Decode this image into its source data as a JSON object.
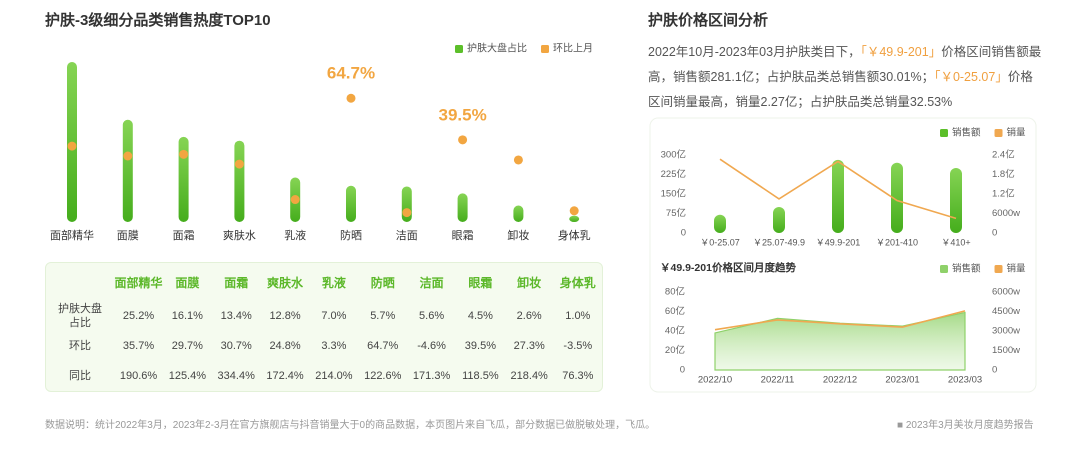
{
  "left_title": "护肤-3级细分品类销售热度TOP10",
  "right_title": "护肤价格区间分析",
  "summary": [
    {
      "text": "2022年10月-2023年03月护肤类目下，",
      "highlight": false
    },
    {
      "text": "「￥49.9-201」",
      "highlight": true
    },
    {
      "text": "价格区间销售额最高，销售额281.1亿；占护肤品类总销售额30.01%；",
      "highlight": false
    },
    {
      "text": "「￥0-25.07」",
      "highlight": true
    },
    {
      "text": "价格区间销量最高，销量2.27亿；占护肤品类总销量32.53%",
      "highlight": false
    }
  ],
  "chart_data": [
    {
      "type": "bar-dot",
      "categories": [
        "面部精华",
        "面膜",
        "面霜",
        "爽肤水",
        "乳液",
        "防晒",
        "洁面",
        "眼霜",
        "卸妆",
        "身体乳"
      ],
      "series": [
        {
          "name": "护肤大盘占比",
          "color": "#5cbf2a",
          "values": [
            25.2,
            16.1,
            13.4,
            12.8,
            7.0,
            5.7,
            5.6,
            4.5,
            2.6,
            1.0
          ]
        },
        {
          "name": "环比上月",
          "color": "#f2a641",
          "axis": "y2",
          "values": [
            35.7,
            29.7,
            30.7,
            24.8,
            3.3,
            64.7,
            -4.6,
            39.5,
            27.3,
            -3.5
          ],
          "value_labels": [
            null,
            null,
            null,
            null,
            null,
            "64.7%",
            null,
            "39.5%",
            null,
            null
          ]
        }
      ]
    },
    {
      "type": "bar-line",
      "categories": [
        "￥0-25.07",
        "￥25.07-49.9",
        "￥49.9-201",
        "￥201-410",
        "￥410+"
      ],
      "series": [
        {
          "name": "销售额",
          "color": "#5cbf2a",
          "values": [
            70,
            100,
            281.1,
            270,
            250
          ]
        },
        {
          "name": "销量",
          "color": "#f0a850",
          "axis": "y2",
          "values": [
            2.27,
            1.05,
            2.2,
            1.0,
            0.45
          ]
        }
      ],
      "ylim": [
        0,
        300
      ],
      "yticks": [
        0,
        {
          "value": 75,
          "label": "75亿"
        },
        {
          "value": 150,
          "label": "150亿"
        },
        {
          "value": 225,
          "label": "225亿"
        },
        {
          "value": 300,
          "label": "300亿"
        }
      ],
      "y2lim": [
        0,
        2.4
      ],
      "y2ticks": [
        0,
        {
          "value": 0.6,
          "label": "6000w"
        },
        {
          "value": 1.2,
          "label": "1.2亿"
        },
        {
          "value": 1.8,
          "label": "1.8亿"
        },
        {
          "value": 2.4,
          "label": "2.4亿"
        }
      ]
    },
    {
      "type": "area-line",
      "title": "￥49.9-201价格区间月度趋势",
      "categories": [
        "2022/10",
        "2022/11",
        "2022/12",
        "2023/01",
        "2023/03"
      ],
      "series": [
        {
          "name": "销售额",
          "color": "#8fd16a",
          "values": [
            38,
            53,
            48,
            45,
            59
          ]
        },
        {
          "name": "销量",
          "color": "#f0a850",
          "axis": "y2",
          "values": [
            3100,
            3850,
            3550,
            3300,
            4550
          ]
        }
      ],
      "ylim": [
        0,
        80
      ],
      "yticks": [
        0,
        {
          "value": 20,
          "label": "20亿"
        },
        {
          "value": 40,
          "label": "40亿"
        },
        {
          "value": 60,
          "label": "60亿"
        },
        {
          "value": 80,
          "label": "80亿"
        }
      ],
      "y2lim": [
        0,
        6000
      ],
      "y2ticks": [
        0,
        {
          "value": 1500,
          "label": "1500w"
        },
        {
          "value": 3000,
          "label": "3000w"
        },
        {
          "value": 4500,
          "label": "4500w"
        },
        {
          "value": 6000,
          "label": "6000w"
        }
      ]
    }
  ],
  "table": {
    "row_labels": [
      "护肤大盘占比",
      "环比",
      "同比"
    ],
    "rows": [
      [
        "25.2%",
        "16.1%",
        "13.4%",
        "12.8%",
        "7.0%",
        "5.7%",
        "5.6%",
        "4.5%",
        "2.6%",
        "1.0%"
      ],
      [
        "35.7%",
        "29.7%",
        "30.7%",
        "24.8%",
        "3.3%",
        "64.7%",
        "-4.6%",
        "39.5%",
        "27.3%",
        "-3.5%"
      ],
      [
        "190.6%",
        "125.4%",
        "334.4%",
        "172.4%",
        "214.0%",
        "122.6%",
        "171.3%",
        "118.5%",
        "218.4%",
        "76.3%"
      ]
    ]
  },
  "footer_note": "数据说明：统计2022年3月，2023年2-3月在官方旗舰店与抖音销量大于0的商品数据，本页图片来自飞瓜，部分数据已做脱敏处理，飞瓜。",
  "footer_report": "2023年3月美妆月度趋势报告"
}
